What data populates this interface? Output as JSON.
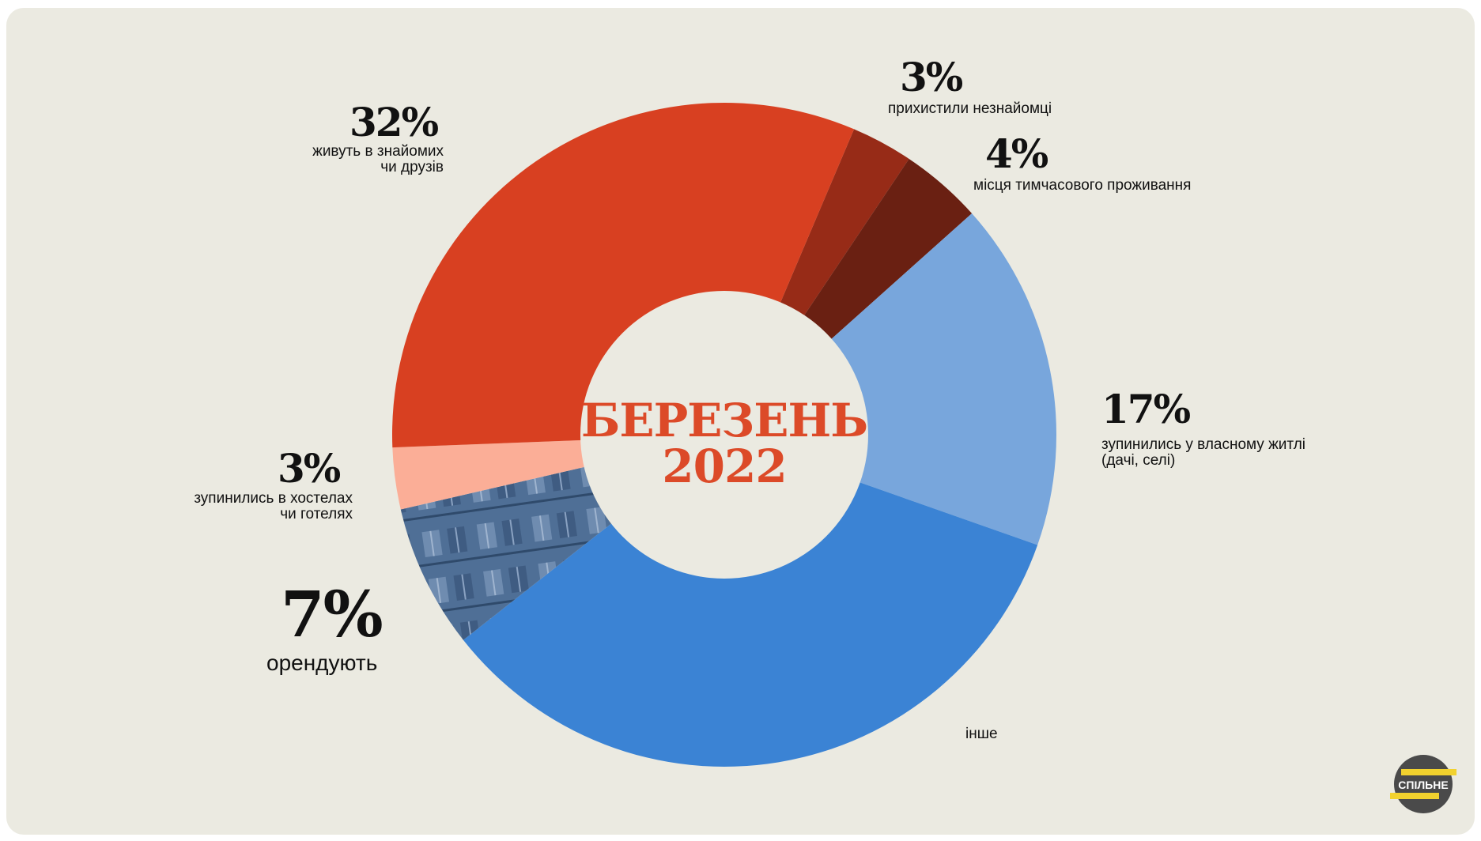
{
  "chart_data": {
    "type": "pie",
    "subtype": "donut",
    "center_label": [
      "БЕРЕЗЕНЬ",
      "2022"
    ],
    "slices": [
      {
        "label": "прихистили незнайомці",
        "value": 3,
        "percent_label": "3%",
        "color": "#972b17"
      },
      {
        "label": "місця тимчасового проживання",
        "value": 4,
        "percent_label": "4%",
        "color": "#6a2012"
      },
      {
        "label": "зупинились у власному житлі (дачі, селі)",
        "value": 17,
        "percent_label": "17%",
        "color": "#78a6dc"
      },
      {
        "label": "інше",
        "value": 34,
        "percent_label": "",
        "color": "#3b83d4"
      },
      {
        "label": "орендують",
        "value": 7,
        "percent_label": "7%",
        "color": "#4f6f96"
      },
      {
        "label": "зупинились в хостелах чи готелях",
        "value": 3,
        "percent_label": "3%",
        "color": "#fbae97"
      },
      {
        "label": "живуть в знайомих чи друзів",
        "value": 32,
        "percent_label": "32%",
        "color": "#d84021"
      }
    ],
    "background": "#ebeae1",
    "center_color": "#dc4a28"
  },
  "labels": {
    "strangers": {
      "pct": "3%",
      "text": [
        "прихистили незнайомці"
      ]
    },
    "temporary": {
      "pct": "4%",
      "text": [
        "місця тимчасового проживання"
      ]
    },
    "own_home": {
      "pct": "17%",
      "text": [
        "зупинились у власному житлі",
        "(дачі, селі)"
      ]
    },
    "other": {
      "text": [
        "інше"
      ]
    },
    "rent": {
      "pct": "7%",
      "text": [
        "орендують"
      ]
    },
    "hostels": {
      "pct": "3%",
      "text": [
        "зупинились в хостелах",
        "чи готелях"
      ]
    },
    "friends": {
      "pct": "32%",
      "text": [
        "живуть в знайомих",
        "чи друзів"
      ]
    }
  },
  "logo": {
    "text": "СПІЛЬНЕ",
    "accent": "#f2d22e"
  }
}
